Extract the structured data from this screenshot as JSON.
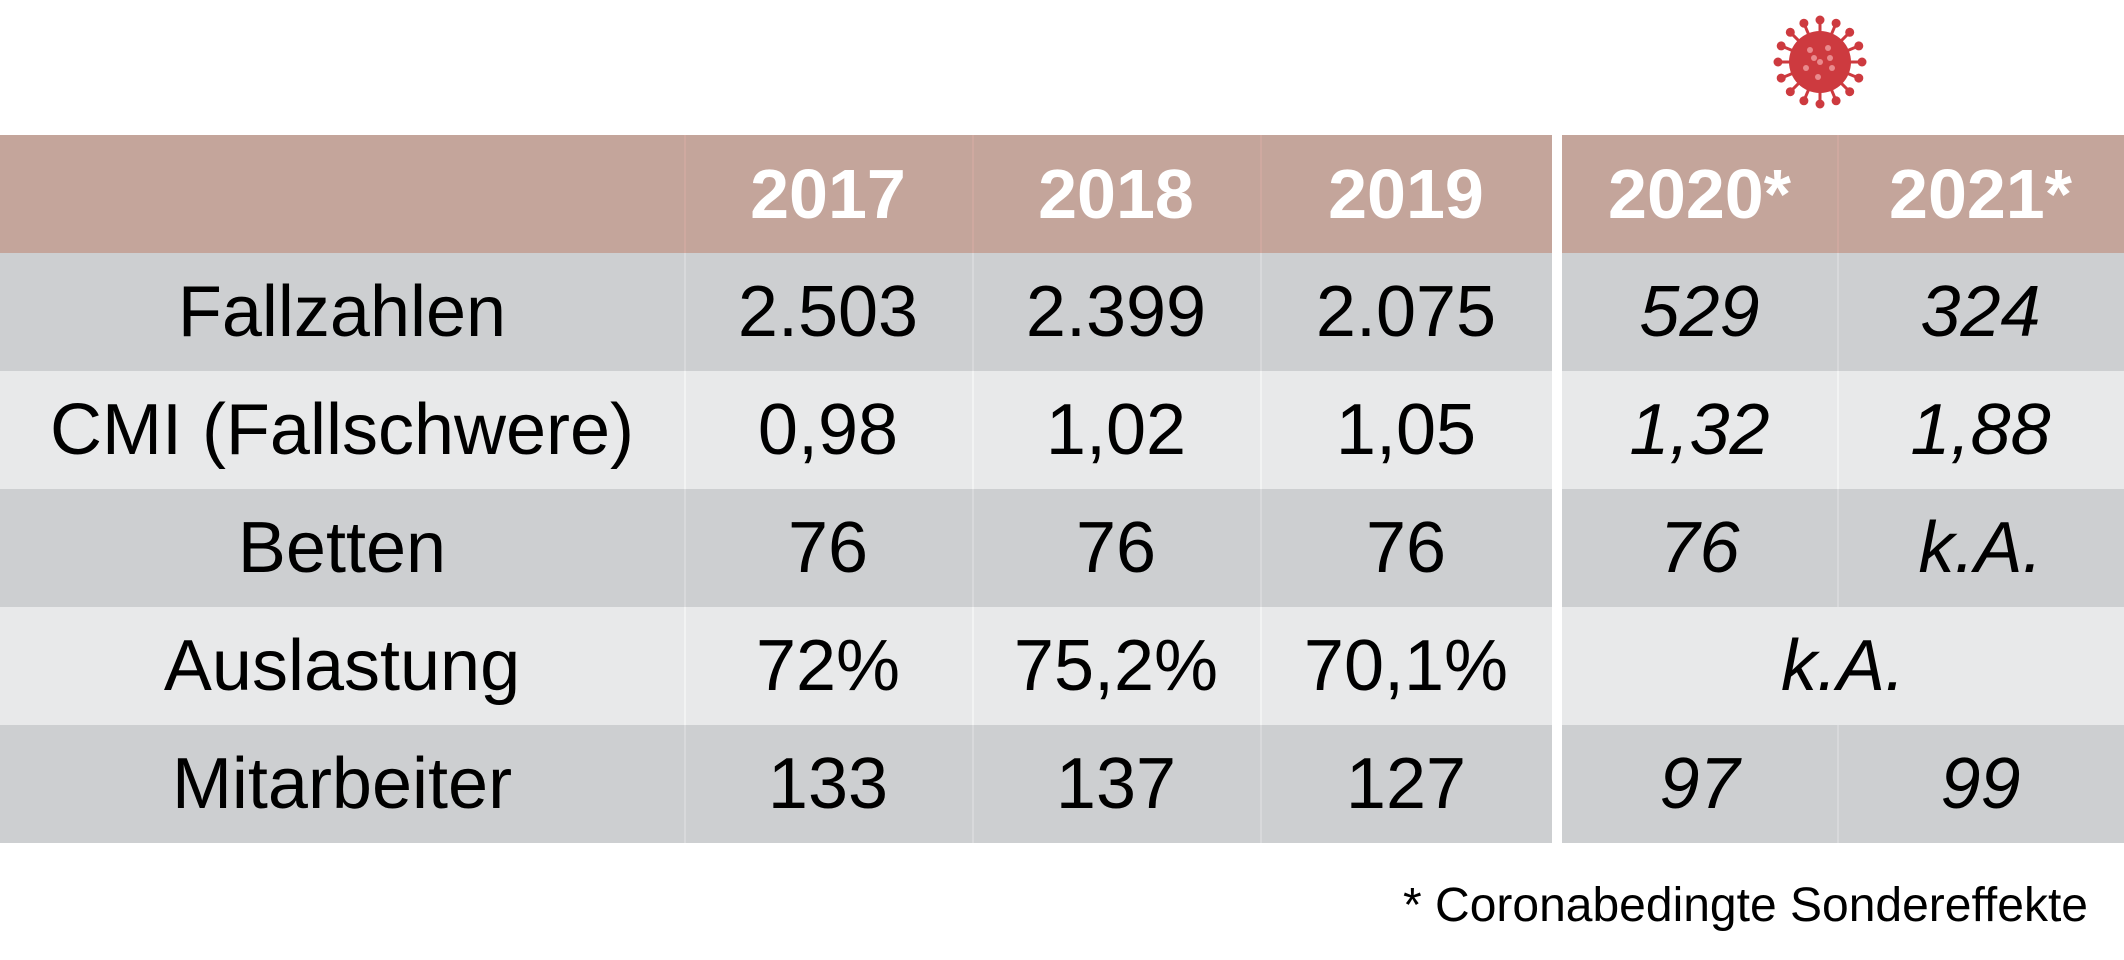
{
  "colors": {
    "header_bg": "#c4a59b",
    "row_dark": "#cdcfd1",
    "row_light": "#e8e9ea",
    "virus": "#cd3a3f"
  },
  "icon": "coronavirus-icon",
  "header": {
    "years": [
      "2017",
      "2018",
      "2019",
      "2020*",
      "2021*"
    ]
  },
  "rows": [
    {
      "label": "Fallzahlen",
      "values": [
        "2.503",
        "2.399",
        "2.075",
        "529",
        "324"
      ]
    },
    {
      "label": "CMI (Fallschwere)",
      "values": [
        "0,98",
        "1,02",
        "1,05",
        "1,32",
        "1,88"
      ]
    },
    {
      "label": "Betten",
      "values": [
        "76",
        "76",
        "76",
        "76",
        "k.A."
      ]
    },
    {
      "label": "Auslastung",
      "values": [
        "72%",
        "75,2%",
        "70,1%"
      ],
      "merged_value": "k.A."
    },
    {
      "label": "Mitarbeiter",
      "values": [
        "133",
        "137",
        "127",
        "97",
        "99"
      ]
    }
  ],
  "footnote": "* Coronabedingte Sondereffekte"
}
